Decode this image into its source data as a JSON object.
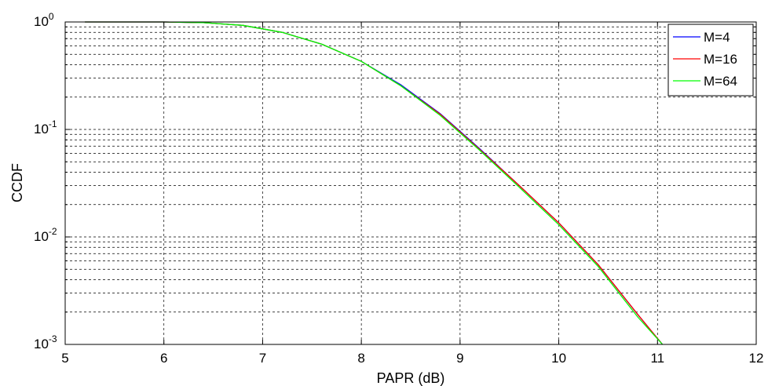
{
  "chart_data": {
    "type": "line",
    "title": "",
    "xlabel": "PAPR (dB)",
    "ylabel": "CCDF",
    "xlim": [
      5,
      12
    ],
    "ylim": [
      0.001,
      1
    ],
    "yscale": "log",
    "grid": true,
    "legend_position": "top-right",
    "x_ticks": [
      5,
      6,
      7,
      8,
      9,
      10,
      11,
      12
    ],
    "x_tick_labels": [
      "5",
      "6",
      "7",
      "8",
      "9",
      "10",
      "11",
      "12"
    ],
    "y_ticks": [
      {
        "value": 1,
        "base": "10",
        "exp": "0"
      },
      {
        "value": 0.1,
        "base": "10",
        "exp": "-1"
      },
      {
        "value": 0.01,
        "base": "10",
        "exp": "-2"
      },
      {
        "value": 0.001,
        "base": "10",
        "exp": "-3"
      }
    ],
    "series": [
      {
        "name": "M=4",
        "color": "#0000ff",
        "x": [
          5.2,
          6.0,
          6.4,
          6.8,
          7.2,
          7.6,
          8.0,
          8.4,
          8.8,
          9.2,
          9.6,
          10.0,
          10.4,
          10.8,
          11.05
        ],
        "y": [
          1.0,
          1.0,
          0.985,
          0.93,
          0.8,
          0.62,
          0.43,
          0.26,
          0.14,
          0.066,
          0.03,
          0.0135,
          0.0055,
          0.0019,
          0.00095
        ]
      },
      {
        "name": "M=16",
        "color": "#ff0000",
        "x": [
          5.2,
          6.0,
          6.4,
          6.8,
          7.2,
          7.6,
          8.0,
          8.4,
          8.8,
          9.2,
          9.6,
          10.0,
          10.4,
          10.8,
          11.05
        ],
        "y": [
          1.0,
          1.0,
          0.985,
          0.93,
          0.8,
          0.62,
          0.43,
          0.255,
          0.138,
          0.065,
          0.03,
          0.0135,
          0.0055,
          0.0019,
          0.00095
        ]
      },
      {
        "name": "M=64",
        "color": "#00ff00",
        "x": [
          5.2,
          6.0,
          6.4,
          6.8,
          7.2,
          7.6,
          8.0,
          8.4,
          8.8,
          9.2,
          9.6,
          10.0,
          10.4,
          10.8,
          11.05
        ],
        "y": [
          1.0,
          1.0,
          0.985,
          0.93,
          0.8,
          0.62,
          0.43,
          0.255,
          0.135,
          0.064,
          0.029,
          0.013,
          0.0053,
          0.0018,
          0.00092
        ]
      }
    ]
  }
}
